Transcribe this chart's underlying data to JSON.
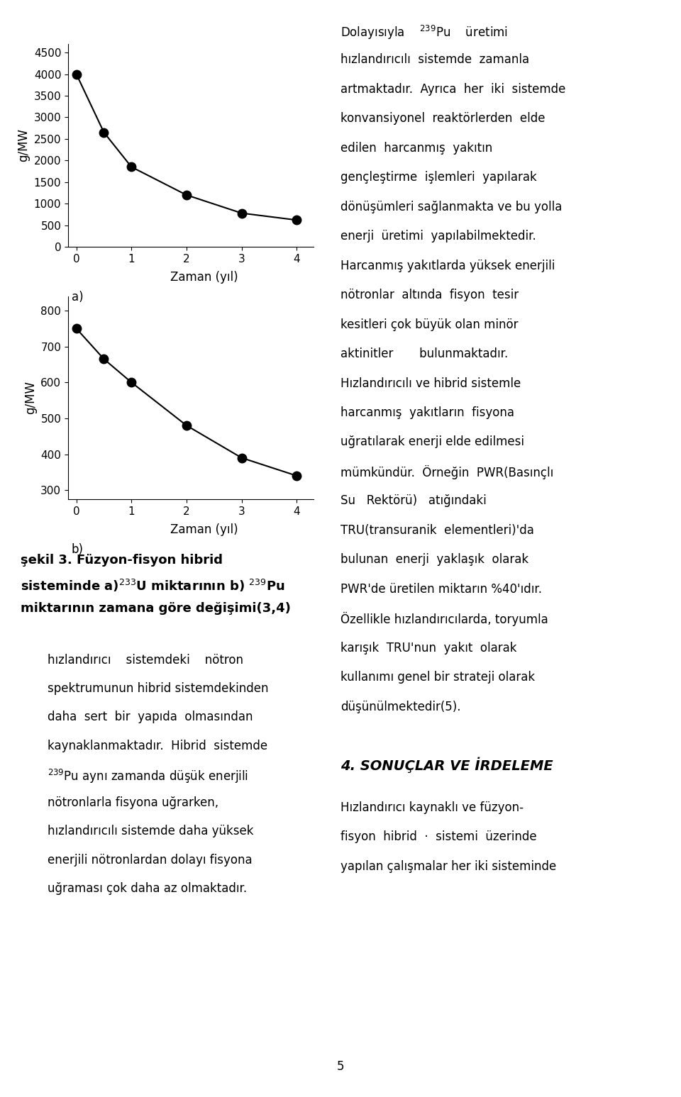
{
  "chart_a": {
    "x": [
      0,
      0.5,
      1,
      2,
      3,
      4
    ],
    "y": [
      4000,
      2650,
      1850,
      1200,
      780,
      620
    ],
    "ylabel": "g/MW",
    "xlabel": "Zaman (yıl)",
    "sublabel": "a)",
    "yticks": [
      0,
      500,
      1000,
      1500,
      2000,
      2500,
      3000,
      3500,
      4000,
      4500
    ],
    "xticks": [
      0,
      1,
      2,
      3,
      4
    ],
    "ylim": [
      0,
      4700
    ],
    "xlim": [
      -0.15,
      4.3
    ]
  },
  "chart_b": {
    "x": [
      0,
      0.5,
      1,
      2,
      3,
      4
    ],
    "y": [
      750,
      665,
      600,
      480,
      390,
      340
    ],
    "ylabel": "g/MW",
    "xlabel": "Zaman (yıl)",
    "sublabel": "b)",
    "yticks": [
      300,
      400,
      500,
      600,
      700,
      800
    ],
    "xticks": [
      0,
      1,
      2,
      3,
      4
    ],
    "ylim": [
      275,
      840
    ],
    "xlim": [
      -0.15,
      4.3
    ]
  },
  "caption_line1": "şekil 3. Füzyon-fisyon hibrid",
  "caption_line2": "sisteminde a)$^{233}$U miktarının b) $^{239}$Pu",
  "caption_line3": "miktarının zamana göre değişimi(3,4)",
  "bottom_text": [
    "hızlandırıcı    sistemdeki    nötron",
    "spektrumunun hibrid sistemdekinden",
    "daha  sert  bir  yapıda  olmasından",
    "kaynaklanmaktadır.  Hibrid  sistemde",
    "$^{239}$Pu aynı zamanda düşük enerjili",
    "nötronlarla fisyona uğrarken,",
    "hızlandırıcılı sistemde daha yüksek",
    "enerjili nötronlardan dolayı fisyona",
    "uğraması çok daha az olmaktadır."
  ],
  "right_col_text": [
    "Dolayısıyla    $^{239}$Pu    üretimi",
    "hızlandırıcılı  sistemde  zamanla",
    "artmaktadır.  Ayrıca  her  iki  sistemde",
    "konvansiyonel  reaktörlerden  elde",
    "edilen  harcanmış  yakıtın",
    "gençleştirme  işlemleri  yapılarak",
    "dönüşümleri sağlanmakta ve bu yolla",
    "enerji  üretimi  yapılabilmektedir.",
    "Harcanmış yakıtlarda yüksek enerjili",
    "nötronlar  altında  fisyon  tesir",
    "kesitleri çok büyük olan minör",
    "aktinitler       bulunmaktadır.",
    "Hızlandırıcılı ve hibrid sistemle",
    "harcanmış  yakıtların  fisyona",
    "uğratılarak enerji elde edilmesi",
    "mümkündür.  Örneğin  PWR(Basınçlı",
    "Su   Rektörü)   atığındaki",
    "TRU(transuranik  elementleri)'da",
    "bulunan  enerji  yaklaşık  olarak",
    "PWR'de üretilen miktarın %40'ıdır.",
    "Özellikle hızlandırıcılarda, toryumla",
    "karışık  TRU'nun  yakıt  olarak",
    "kullanımı genel bir strateji olarak",
    "düşünülmektedir(5)."
  ],
  "section_header": "4. SONUÇLAR VE İRDELEME",
  "section_body": [
    "Hızlandırıcı kaynaklı ve füzyon-",
    "fisyon  hibrid  ·  sistemi  üzerinde",
    "yapılan çalışmalar her iki sisteminde"
  ],
  "page_number": "5",
  "bg": "#ffffff",
  "fg": "#000000",
  "marker_size": 9,
  "line_width": 1.5,
  "axis_fontsize": 11,
  "label_fontsize": 12,
  "body_fontsize": 12,
  "caption_fontsize": 13,
  "header_fontsize": 14
}
